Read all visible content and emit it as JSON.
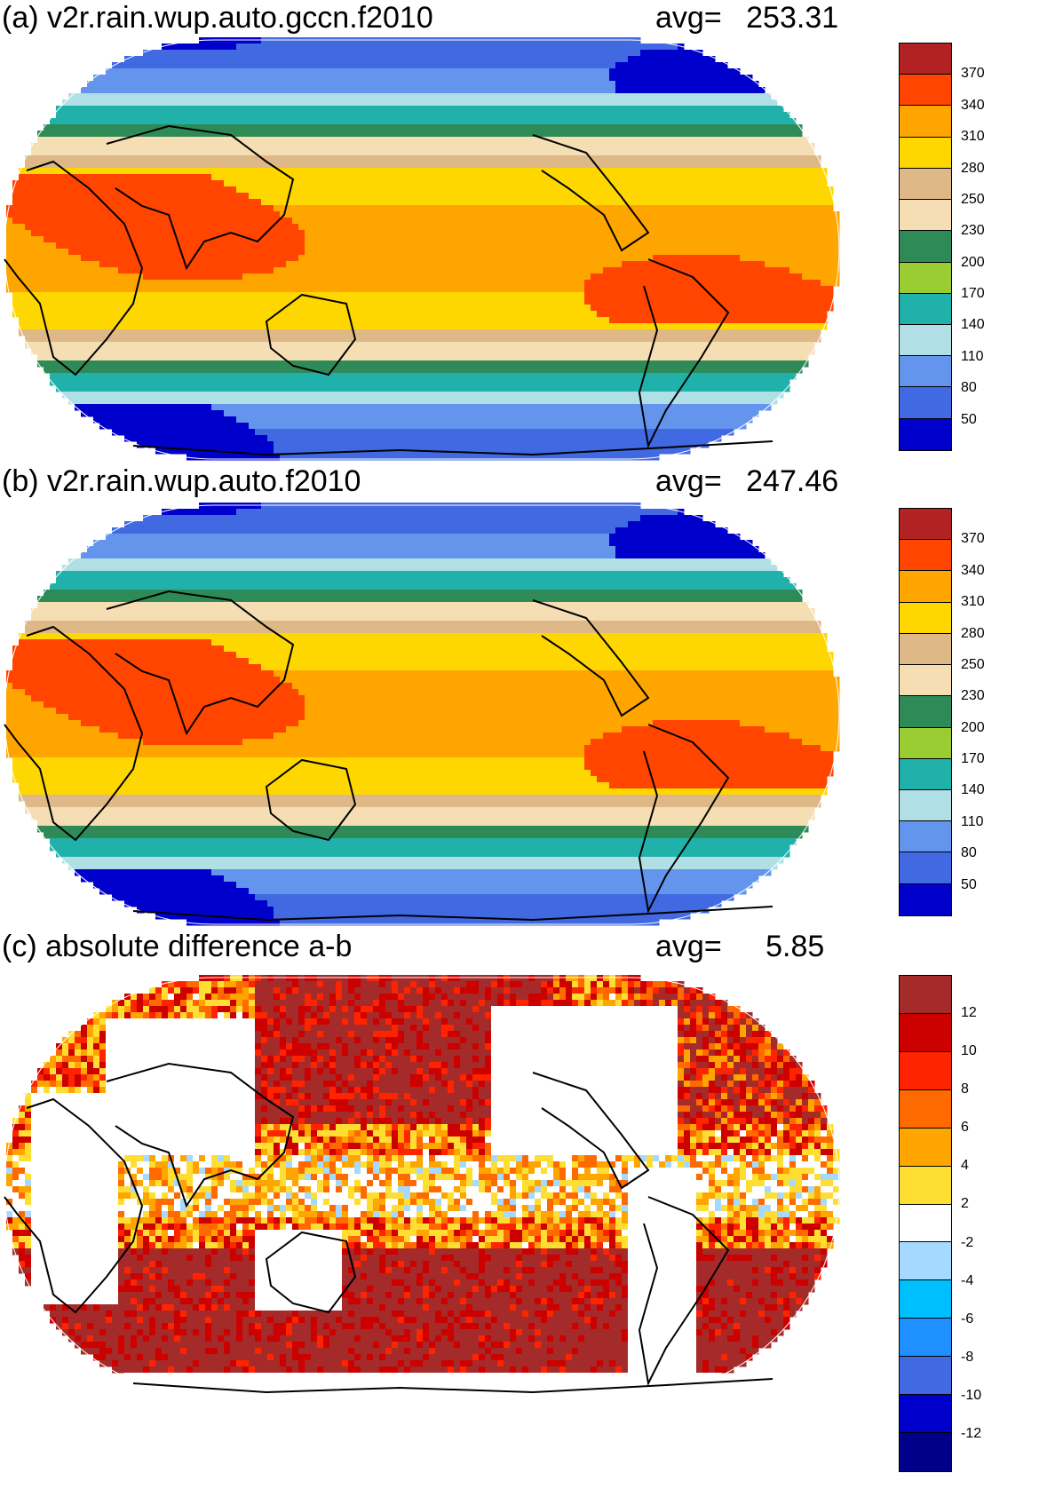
{
  "panels": [
    {
      "id": "a",
      "title": "(a) v2r.rain.wup.auto.gccn.f2010",
      "avg_label": "avg=",
      "avg_value": "253.31",
      "colorbar": {
        "colors": [
          "#b22222",
          "#ff4500",
          "#ffa500",
          "#ffd700",
          "#deb887",
          "#f5deb3",
          "#2e8b57",
          "#9acd32",
          "#20b2aa",
          "#b0e0e6",
          "#6495ed",
          "#4169e1",
          "#0000cd"
        ],
        "labels": [
          "370",
          "340",
          "310",
          "280",
          "250",
          "230",
          "200",
          "170",
          "140",
          "110",
          "80",
          "50"
        ]
      }
    },
    {
      "id": "b",
      "title": "(b) v2r.rain.wup.auto.f2010",
      "avg_label": "avg=",
      "avg_value": "247.46",
      "colorbar": {
        "colors": [
          "#b22222",
          "#ff4500",
          "#ffa500",
          "#ffd700",
          "#deb887",
          "#f5deb3",
          "#2e8b57",
          "#9acd32",
          "#20b2aa",
          "#b0e0e6",
          "#6495ed",
          "#4169e1",
          "#0000cd"
        ],
        "labels": [
          "370",
          "340",
          "310",
          "280",
          "250",
          "230",
          "200",
          "170",
          "140",
          "110",
          "80",
          "50"
        ]
      }
    },
    {
      "id": "c",
      "title": "(c) absolute difference a-b",
      "avg_label": "avg=",
      "avg_value": "5.85",
      "colorbar": {
        "colors": [
          "#a52a2a",
          "#cd0000",
          "#ff2400",
          "#ff6a00",
          "#ffa500",
          "#ffde33",
          "#ffffff",
          "#a6d9ff",
          "#00bfff",
          "#1e90ff",
          "#4169e1",
          "#0000cd",
          "#00008b"
        ],
        "labels": [
          "12",
          "10",
          "8",
          "6",
          "4",
          "2",
          "-2",
          "-4",
          "-6",
          "-8",
          "-10",
          "-12"
        ]
      }
    }
  ]
}
